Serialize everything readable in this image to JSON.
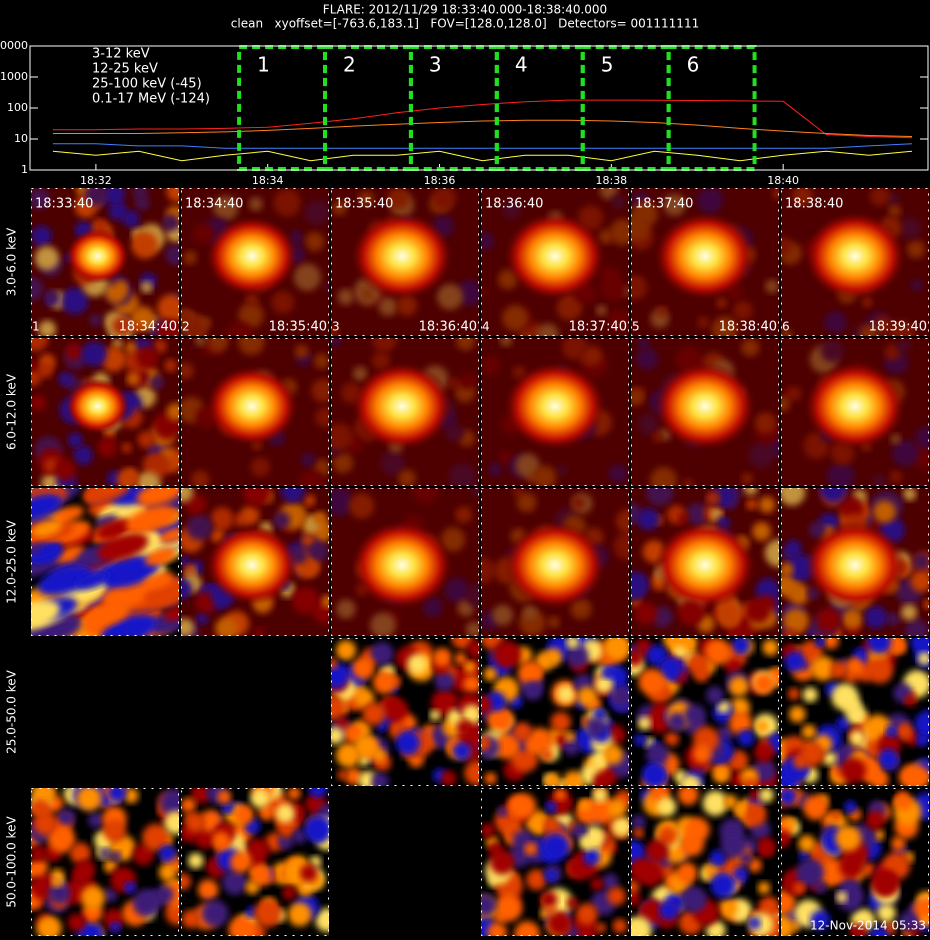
{
  "title": "FLARE: 2012/11/29 18:33:40.000-18:38:40.000",
  "subtitle": "clean   xyoffset=[-763.6,183.1]   FOV=[128.0,128.0]   Detectors= 001111111",
  "chart_data": {
    "type": "line",
    "log_y": true,
    "x": [
      31.5,
      32,
      32.5,
      33,
      33.5,
      34,
      34.5,
      35,
      35.5,
      36,
      36.5,
      37,
      37.5,
      38,
      38.5,
      39,
      39.5,
      40,
      40.5,
      41,
      41.5
    ],
    "series": [
      {
        "name": "3-12 keV",
        "color": "#ff2020",
        "values": [
          20,
          20,
          21,
          21,
          22,
          24,
          32,
          45,
          70,
          100,
          130,
          160,
          180,
          180,
          178,
          175,
          170,
          165,
          14,
          12,
          11
        ]
      },
      {
        "name": "12-25 keV",
        "color": "#ff8020",
        "values": [
          15,
          15,
          15,
          16,
          17,
          19,
          22,
          26,
          30,
          34,
          38,
          40,
          40,
          38,
          34,
          28,
          22,
          18,
          15,
          13,
          12
        ]
      },
      {
        "name": "25-100 keV (-45)",
        "color": "#ffff40",
        "values": [
          4,
          3,
          4,
          2,
          3,
          4,
          2,
          3,
          3,
          4,
          2,
          3,
          3,
          2,
          4,
          3,
          2,
          3,
          4,
          3,
          4
        ]
      },
      {
        "name": "0.1-17 MeV (-124)",
        "color": "#4080ff",
        "values": [
          7,
          7,
          6,
          6,
          5,
          5,
          5,
          5,
          5,
          5,
          5,
          5,
          5,
          5,
          5,
          5,
          5,
          5,
          5,
          6,
          7
        ]
      }
    ],
    "xlim": [
      31.233,
      41.686
    ],
    "xticks": [
      {
        "value": 32,
        "label": "18:32"
      },
      {
        "value": 34,
        "label": "18:34"
      },
      {
        "value": 36,
        "label": "18:36"
      },
      {
        "value": 38,
        "label": "18:38"
      },
      {
        "value": 40,
        "label": "18:40"
      }
    ],
    "ylim": [
      1,
      10000
    ],
    "yticks": [
      1,
      10,
      100,
      1000,
      10000
    ],
    "intervals": [
      {
        "label": "1",
        "start": 33.667,
        "end": 34.667
      },
      {
        "label": "2",
        "start": 34.667,
        "end": 35.667
      },
      {
        "label": "3",
        "start": 35.667,
        "end": 36.667
      },
      {
        "label": "4",
        "start": 36.667,
        "end": 37.667
      },
      {
        "label": "5",
        "start": 37.667,
        "end": 38.667
      },
      {
        "label": "6",
        "start": 38.667,
        "end": 39.667
      }
    ],
    "interval_color": "#20e020"
  },
  "image_grid": {
    "row_labels": [
      "3.0-6.0 keV",
      "6.0-12.0 keV",
      "12.0-25.0 keV",
      "25.0-50.0 keV",
      "50.0-100.0 keV"
    ],
    "start_times": [
      "18:33:40",
      "18:34:40",
      "18:35:40",
      "18:36:40",
      "18:37:40",
      "18:38:40"
    ],
    "numbers": [
      "1",
      "2",
      "3",
      "4",
      "5",
      "6"
    ],
    "end_times": [
      "18:34:40",
      "18:35:40",
      "18:36:40",
      "18:37:40",
      "18:38:40",
      "18:39:40"
    ]
  },
  "footer": "12-Nov-2014 05:33"
}
